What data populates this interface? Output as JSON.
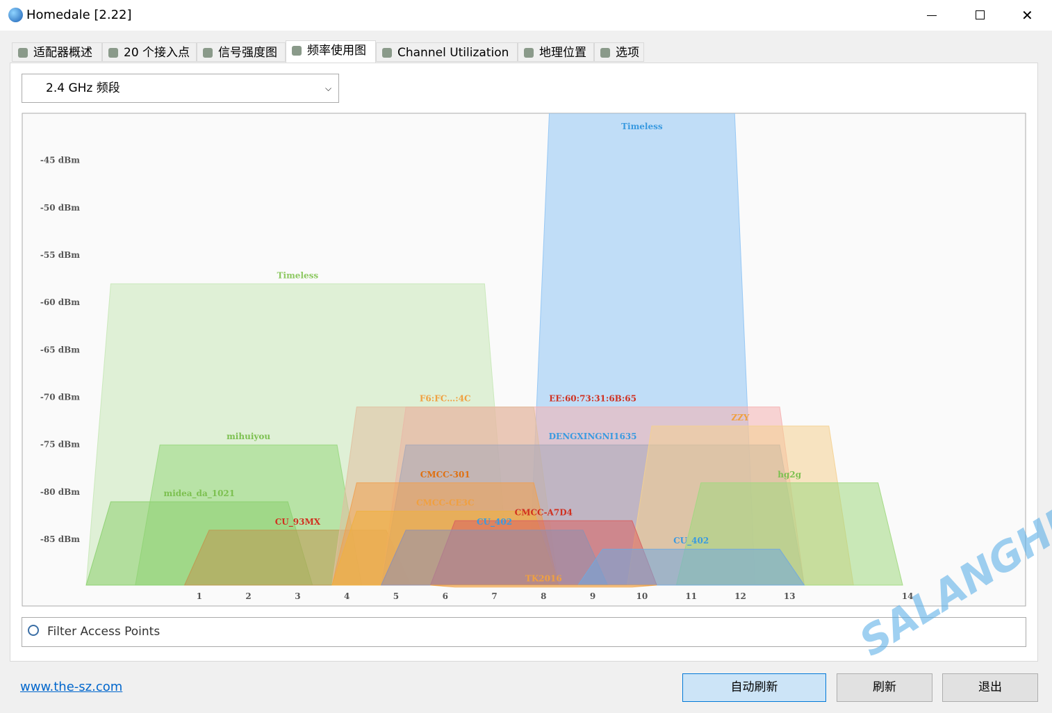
{
  "window": {
    "title": "Homedale [2.22]",
    "tabs": [
      "适配器概述",
      "20 个接入点",
      "信号强度图",
      "频率使用图",
      "Channel Utilization",
      "地理位置",
      "选项"
    ],
    "band_select": "2.4 GHz 频段",
    "filter_placeholder": "Filter Access Points",
    "link": "www.the-sz.com",
    "buttons": [
      "自动刷新",
      "刷新",
      "退出"
    ],
    "watermark": "SALANGHE"
  },
  "chart_data": {
    "type": "spectrum",
    "xlim": [
      2394,
      2496
    ],
    "ylim": [
      -92,
      -40
    ],
    "xticks": [
      {
        "value": 2412,
        "label": "1"
      },
      {
        "value": 2417,
        "label": "2"
      },
      {
        "value": 2422,
        "label": "3"
      },
      {
        "value": 2427,
        "label": "4"
      },
      {
        "value": 2432,
        "label": "5"
      },
      {
        "value": 2437,
        "label": "6"
      },
      {
        "value": 2442,
        "label": "7"
      },
      {
        "value": 2447,
        "label": "8"
      },
      {
        "value": 2452,
        "label": "9"
      },
      {
        "value": 2457,
        "label": "10"
      },
      {
        "value": 2462,
        "label": "11"
      },
      {
        "value": 2467,
        "label": "12"
      },
      {
        "value": 2472,
        "label": "13"
      },
      {
        "value": 2484,
        "label": "14"
      }
    ],
    "yticks": [
      {
        "value": -85,
        "label": "-85 dBm"
      },
      {
        "value": -80,
        "label": "-80 dBm"
      },
      {
        "value": -75,
        "label": "-75 dBm"
      },
      {
        "value": -70,
        "label": "-70 dBm"
      },
      {
        "value": -65,
        "label": "-65 dBm"
      },
      {
        "value": -60,
        "label": "-60 dBm"
      },
      {
        "value": -55,
        "label": "-55 dBm"
      },
      {
        "value": -50,
        "label": "-50 dBm"
      },
      {
        "value": -45,
        "label": "-45 dBm"
      }
    ],
    "grid": true,
    "series": [
      {
        "name": "Timeless",
        "x": 2422,
        "width": 40,
        "value": -58,
        "color": "#c8e8b8",
        "label_color": "#8cc860"
      },
      {
        "name": "Timeless",
        "x": 2457,
        "width": 20,
        "value": -30,
        "color": "#90c4f4",
        "label_color": "#3a9ae0"
      },
      {
        "name": "mihuiyou",
        "x": 2417,
        "width": 20,
        "value": -75,
        "color": "#98d880",
        "label_color": "#7cc050"
      },
      {
        "name": "midea_da_1021",
        "x": 2412,
        "width": 20,
        "value": -81,
        "color": "#8cd070",
        "label_color": "#7cc050"
      },
      {
        "name": "CU_93MX",
        "x": 2422,
        "width": 20,
        "value": -84,
        "color": "#c09850",
        "label_color": "#d03020"
      },
      {
        "name": "EE:60:73:31:6B:65",
        "x": 2452,
        "width": 40,
        "value": -71,
        "color": "#f4b0b0",
        "label_color": "#d03020"
      },
      {
        "name": "F6:FC…:4C",
        "x": 2437,
        "width": 20,
        "value": -71,
        "color": "#e0c0a0",
        "label_color": "#f0a040"
      },
      {
        "name": "DENGXINGNI1635",
        "x": 2452,
        "width": 40,
        "value": -75,
        "color": "#a8a8b8",
        "label_color": "#3a9ae0"
      },
      {
        "name": "ZZY",
        "x": 2467,
        "width": 20,
        "value": -73,
        "color": "#f4d090",
        "label_color": "#f0a040"
      },
      {
        "name": "CMCC-301",
        "x": 2437,
        "width": 20,
        "value": -79,
        "color": "#f0a050",
        "label_color": "#e07010"
      },
      {
        "name": "hg2g",
        "x": 2472,
        "width": 20,
        "value": -79,
        "color": "#a0d880",
        "label_color": "#7cc050"
      },
      {
        "name": "CMCC-CE3C",
        "x": 2437,
        "width": 20,
        "value": -82,
        "color": "#f0b040",
        "label_color": "#f0a040"
      },
      {
        "name": "CMCC-A7D4",
        "x": 2447,
        "width": 20,
        "value": -83,
        "color": "#d86060",
        "label_color": "#d03020"
      },
      {
        "name": "CU_402",
        "x": 2442,
        "width": 20,
        "value": -84,
        "color": "#9090b0",
        "label_color": "#3a9ae0"
      },
      {
        "name": "CU_402",
        "x": 2462,
        "width": 20,
        "value": -86,
        "color": "#70a8e0",
        "label_color": "#3a9ae0"
      },
      {
        "name": "TK2016",
        "x": 2447,
        "width": 20,
        "value": -90,
        "color": "#f0a040",
        "label_color": "#f0a040"
      }
    ]
  }
}
